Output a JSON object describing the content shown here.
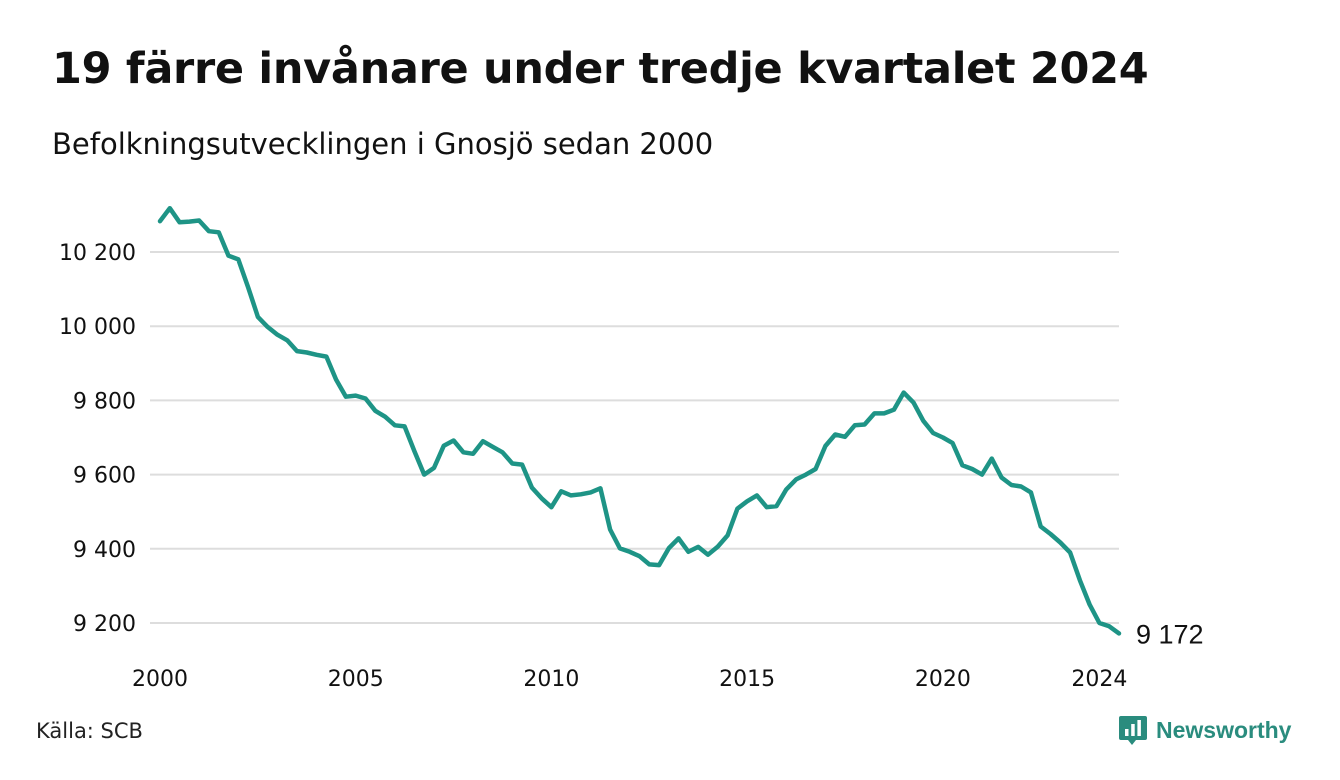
{
  "header": {
    "title": "19 färre invånare under tredje kvartalet 2024",
    "subtitle": "Befolkningsutvecklingen i Gnosjö sedan 2000"
  },
  "footer": {
    "source": "Källa: SCB",
    "brand": "Newsworthy"
  },
  "colors": {
    "line": "#1e9486",
    "grid": "#dddddd",
    "brand": "#2a8c7e"
  },
  "chart_data": {
    "type": "line",
    "title": "19 färre invånare under tredje kvartalet 2024",
    "subtitle": "Befolkningsutvecklingen i Gnosjö sedan 2000",
    "xlabel": "",
    "ylabel": "",
    "xlim": [
      2000,
      2024.75
    ],
    "ylim": [
      9130,
      10330
    ],
    "x_ticks": [
      2000,
      2005,
      2010,
      2015,
      2020,
      2024
    ],
    "x_tick_labels": [
      "2000",
      "2005",
      "2010",
      "2015",
      "2020",
      "2024"
    ],
    "y_ticks": [
      9200,
      9400,
      9600,
      9800,
      10000,
      10200
    ],
    "y_tick_labels": [
      "9 200",
      "9 400",
      "9 600",
      "9 800",
      "10 000",
      "10 200"
    ],
    "grid": true,
    "end_label": "9 172",
    "series": [
      {
        "x": [
          2000.0,
          2000.25,
          2000.5,
          2000.75,
          2001.0,
          2001.25,
          2001.5,
          2001.75,
          2002.0,
          2002.25,
          2002.5,
          2002.75,
          2003.0,
          2003.25,
          2003.5,
          2003.75,
          2004.0,
          2004.25,
          2004.5,
          2004.75,
          2005.0,
          2005.25,
          2005.5,
          2005.75,
          2006.0,
          2006.25,
          2006.5,
          2006.75,
          2007.0,
          2007.25,
          2007.5,
          2007.75,
          2008.0,
          2008.25,
          2008.5,
          2008.75,
          2009.0,
          2009.25,
          2009.5,
          2009.75,
          2010.0,
          2010.25,
          2010.5,
          2010.75,
          2011.0,
          2011.25,
          2011.5,
          2011.75,
          2012.0,
          2012.25,
          2012.5,
          2012.75,
          2013.0,
          2013.25,
          2013.5,
          2013.75,
          2014.0,
          2014.25,
          2014.5,
          2014.75,
          2015.0,
          2015.25,
          2015.5,
          2015.75,
          2016.0,
          2016.25,
          2016.5,
          2016.75,
          2017.0,
          2017.25,
          2017.5,
          2017.75,
          2018.0,
          2018.25,
          2018.5,
          2018.75,
          2019.0,
          2019.25,
          2019.5,
          2019.75,
          2020.0,
          2020.25,
          2020.5,
          2020.75,
          2021.0,
          2021.25,
          2021.5,
          2021.75,
          2022.0,
          2022.25,
          2022.5,
          2022.75,
          2023.0,
          2023.25,
          2023.5,
          2023.75,
          2024.0,
          2024.25,
          2024.5
        ],
        "y": [
          10283,
          10318,
          10280,
          10282,
          10285,
          10256,
          10253,
          10190,
          10180,
          10105,
          10025,
          9998,
          9977,
          9962,
          9933,
          9929,
          9923,
          9918,
          9856,
          9810,
          9813,
          9805,
          9772,
          9756,
          9733,
          9730,
          9663,
          9600,
          9618,
          9678,
          9692,
          9660,
          9656,
          9690,
          9675,
          9660,
          9630,
          9627,
          9565,
          9536,
          9512,
          9555,
          9544,
          9547,
          9552,
          9563,
          9452,
          9401,
          9392,
          9380,
          9358,
          9356,
          9402,
          9428,
          9392,
          9405,
          9384,
          9406,
          9436,
          9508,
          9528,
          9544,
          9512,
          9515,
          9560,
          9587,
          9600,
          9615,
          9677,
          9708,
          9702,
          9733,
          9735,
          9765,
          9765,
          9775,
          9821,
          9794,
          9745,
          9712,
          9700,
          9685,
          9625,
          9615,
          9600,
          9643,
          9592,
          9572,
          9568,
          9552,
          9460,
          9440,
          9417,
          9390,
          9315,
          9250,
          9200,
          9191,
          9172
        ]
      }
    ]
  }
}
